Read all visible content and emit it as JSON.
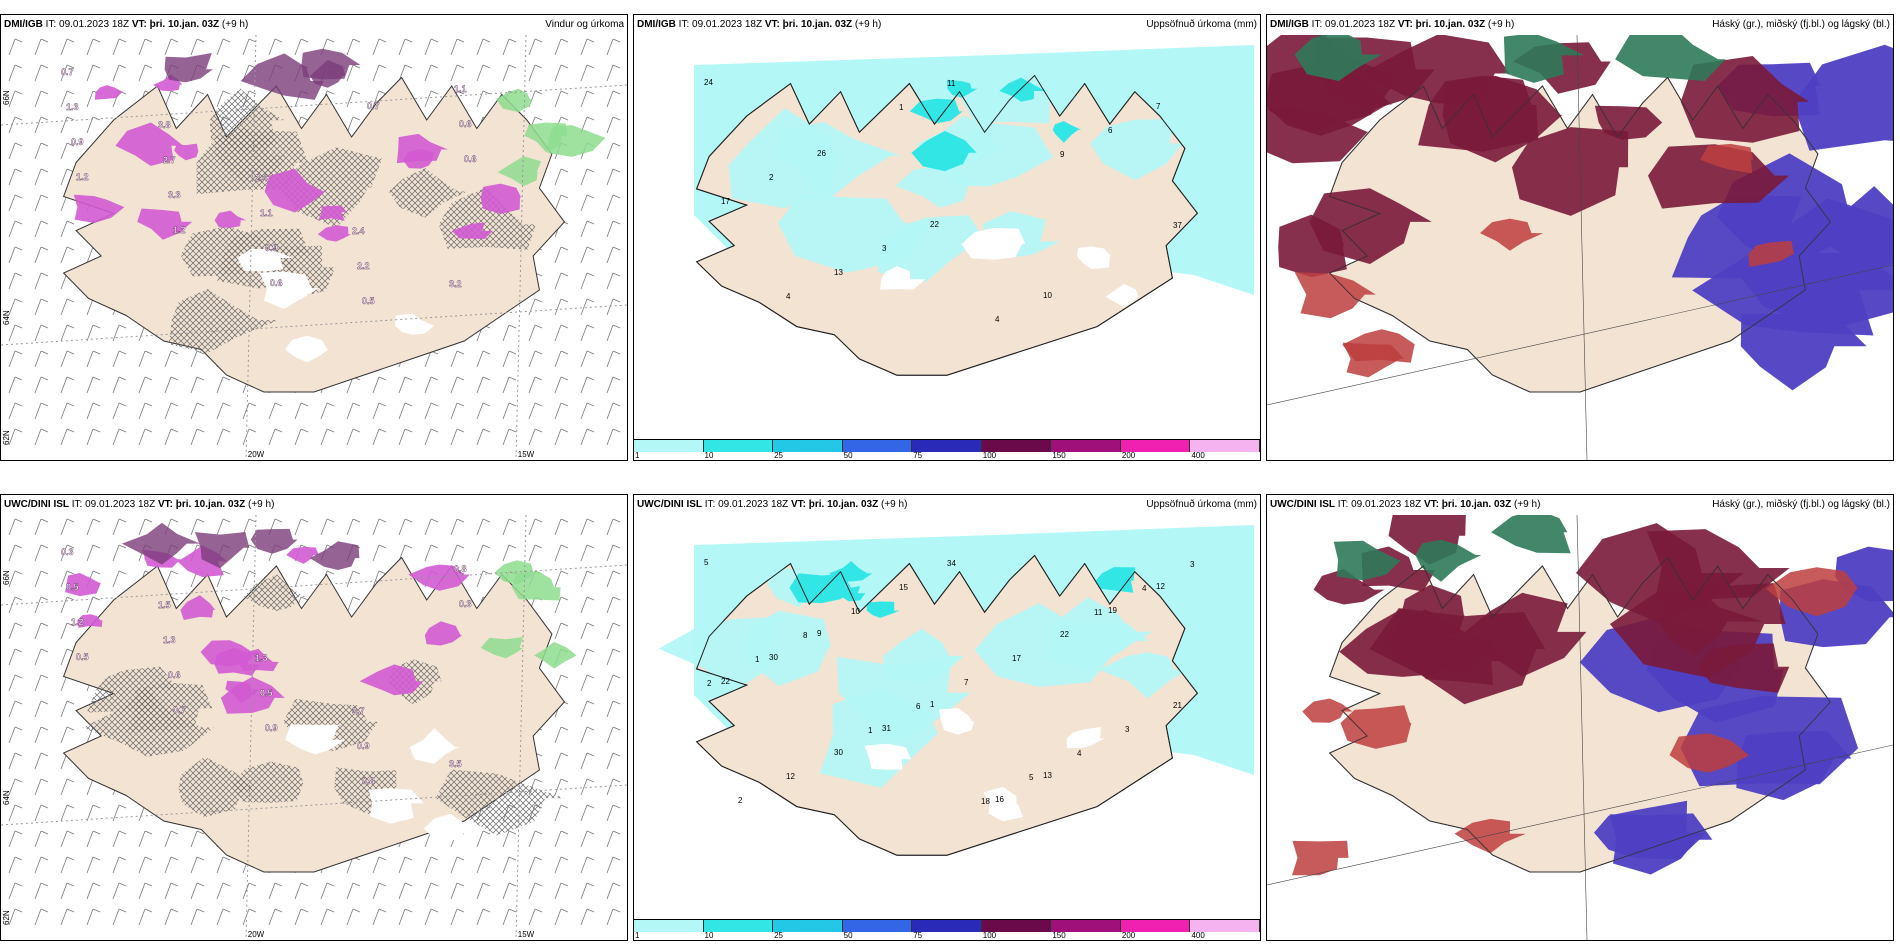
{
  "colors": {
    "land": "#f3e3d3",
    "precip_light": "#b3f7f7",
    "precip_mid": "#33e6e6",
    "snow_magenta": "#d25ad2",
    "snow_dark": "#7a3d7a",
    "rain_green": "#8edc8e",
    "high_cloud": "#7a1a3a",
    "mid_cloud": "#4e3fc3",
    "low_cloud": "#bd3e3e",
    "green_cloud": "#2f7a5a"
  },
  "rows": [
    {
      "source": "DMI/IGB",
      "it_label": "IT: 09.01.2023 18Z",
      "vt_label": "VT: þri. 10.jan. 03Z",
      "lead": "(+9 h)",
      "panels": [
        {
          "type": "wind",
          "title": "Vindur og úrkoma",
          "lat_labels": [
            "66N",
            "64N",
            "62N"
          ],
          "lon_labels": [
            "20W",
            "15W"
          ],
          "values": [
            "0.7",
            "3.8",
            "2.4",
            "2.4",
            "3.2",
            "1.3",
            "2.7",
            "1.1",
            "2.2",
            "1.1",
            "0.9",
            "3.3",
            "0.9",
            "0.5",
            "0.6",
            "1.2",
            "1.2",
            "0.6",
            "0.7",
            "0.6"
          ]
        },
        {
          "type": "accum",
          "title": "Uppsöfnuð úrkoma (mm)",
          "values": [
            "24",
            "26",
            "22",
            "10",
            "7",
            "2",
            "3",
            "4",
            "6",
            "17",
            "13",
            "11",
            "9",
            "37",
            "4",
            "1"
          ]
        },
        {
          "type": "cloud",
          "title": "Háský (gr.), miðský (fj.bl.) og lágský (bl.)"
        }
      ]
    },
    {
      "source": "UWC/DINI ISL",
      "it_label": "IT: 09.01.2023 18Z",
      "vt_label": "VT: þri. 10.jan. 03Z",
      "lead": "(+9 h)",
      "panels": [
        {
          "type": "wind",
          "title": "",
          "lat_labels": [
            "66N",
            "64N",
            "62N"
          ],
          "lon_labels": [
            "20W",
            "15W"
          ],
          "values": [
            "0.3",
            "1.5",
            "1.3",
            "3.7",
            "3.5",
            "0.5",
            "1.3",
            "0.5",
            "0.9",
            "0.8",
            "1.2",
            "0.6",
            "0.9",
            "0.8",
            "0.3",
            "0.5",
            "0.7"
          ]
        },
        {
          "type": "accum",
          "title": "Uppsöfnuð úrkoma (mm)",
          "values": [
            "5",
            "9",
            "1",
            "13",
            "12",
            "30",
            "31",
            "16",
            "19",
            "22",
            "30",
            "34",
            "22",
            "21",
            "12",
            "15",
            "17",
            "3",
            "2",
            "10",
            "7",
            "4",
            "3",
            "8",
            "6",
            "5",
            "4",
            "1",
            "1",
            "18",
            "11",
            "2"
          ]
        },
        {
          "type": "cloud",
          "title": "Háský (gr.), miðský (fj.bl.) og lágský (bl.)"
        }
      ]
    }
  ],
  "colorbar": {
    "ticks": [
      "1",
      "10",
      "25",
      "50",
      "75",
      "100",
      "150",
      "200",
      "400"
    ],
    "colors": [
      "#b3f7f7",
      "#33e6e6",
      "#22c8e6",
      "#3366e6",
      "#2a2ab8",
      "#6a0a4a",
      "#a0107a",
      "#f020b0",
      "#f5b3f0"
    ]
  }
}
